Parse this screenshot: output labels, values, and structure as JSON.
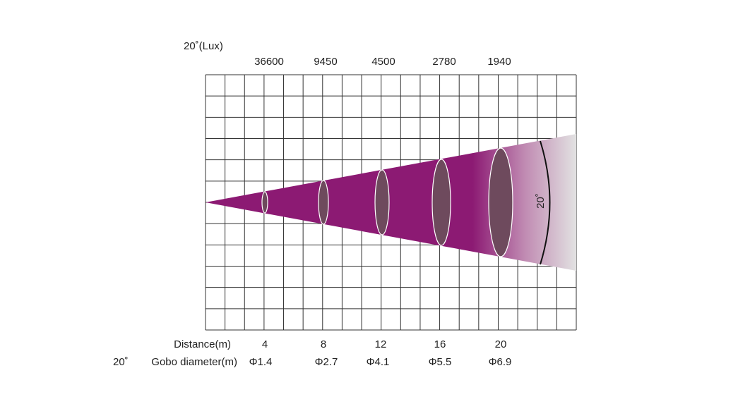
{
  "title": "20˚(Lux)",
  "lux": [
    36600,
    9450,
    4500,
    2780,
    1940
  ],
  "distance": {
    "label": "Distance(m)",
    "values": [
      4,
      8,
      12,
      16,
      20
    ]
  },
  "gobo": {
    "angle": "20˚",
    "label": "Gobo diameter(m)",
    "values": [
      "Φ1.4",
      "Φ2.7",
      "Φ4.1",
      "Φ5.5",
      "Φ6.9"
    ]
  },
  "beam_angle": "20˚"
}
